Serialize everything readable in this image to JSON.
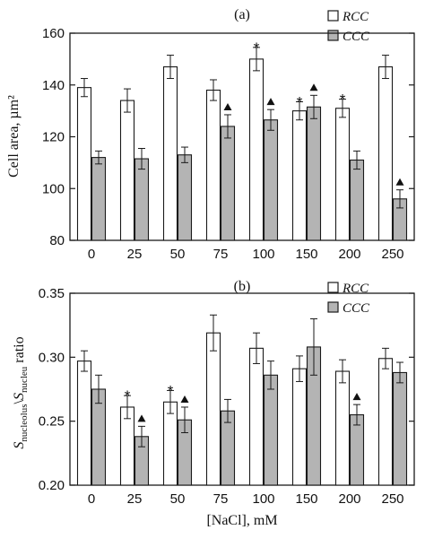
{
  "x_axis": {
    "label": "[NaCl], mM",
    "categories": [
      "0",
      "25",
      "50",
      "75",
      "100",
      "150",
      "200",
      "250"
    ]
  },
  "colors": {
    "RCC": "#ffffff",
    "CCC": "#b4b4b4",
    "stroke": "#1a1a1a"
  },
  "chart_data": [
    {
      "type": "bar",
      "panel": "(a)",
      "title": "(a)",
      "categories": [
        "0",
        "25",
        "50",
        "75",
        "100",
        "150",
        "200",
        "250"
      ],
      "ylabel": "Cell area, µm²",
      "ylim": [
        80,
        160
      ],
      "yticks": [
        80,
        100,
        120,
        140,
        160
      ],
      "ytick_labels": [
        "80",
        "100",
        "120",
        "140",
        "160"
      ],
      "legend_position": "top-right",
      "series": [
        {
          "name": "RCC",
          "values": [
            139,
            134,
            147,
            138,
            150,
            130,
            131,
            147
          ],
          "errors": [
            3.5,
            4.5,
            4.5,
            4,
            4.5,
            3.5,
            3.5,
            4.5
          ],
          "star": [
            false,
            false,
            false,
            false,
            true,
            true,
            true,
            false
          ]
        },
        {
          "name": "CCC",
          "values": [
            112,
            111.5,
            113,
            124,
            126.5,
            131.5,
            111,
            96
          ],
          "errors": [
            2.5,
            4,
            3,
            4.5,
            4,
            4.5,
            3.5,
            3.5
          ],
          "triangle": [
            false,
            false,
            false,
            true,
            true,
            true,
            false,
            true
          ]
        }
      ]
    },
    {
      "type": "bar",
      "panel": "(b)",
      "title": "(b)",
      "categories": [
        "0",
        "25",
        "50",
        "75",
        "100",
        "150",
        "200",
        "250"
      ],
      "ylabel": "S nucleolus \\ S nucleu ratio",
      "ylabel_parts": {
        "s1": "S",
        "sub1": "nucleolus",
        "sep": "\\",
        "s2": "S",
        "sub2": "nucleu",
        "tail": " ratio"
      },
      "ylim": [
        0.2,
        0.35
      ],
      "yticks": [
        0.2,
        0.25,
        0.3,
        0.35
      ],
      "ytick_labels": [
        "0.20",
        "0.25",
        "0.30",
        "0.35"
      ],
      "legend_position": "top-right",
      "series": [
        {
          "name": "RCC",
          "values": [
            0.297,
            0.261,
            0.265,
            0.319,
            0.307,
            0.291,
            0.289,
            0.299
          ],
          "errors": [
            0.008,
            0.009,
            0.009,
            0.014,
            0.012,
            0.01,
            0.009,
            0.008
          ],
          "star": [
            false,
            true,
            true,
            false,
            false,
            false,
            false,
            false
          ]
        },
        {
          "name": "CCC",
          "values": [
            0.275,
            0.238,
            0.251,
            0.258,
            0.286,
            0.308,
            0.255,
            0.288
          ],
          "errors": [
            0.011,
            0.008,
            0.01,
            0.009,
            0.011,
            0.022,
            0.008,
            0.008
          ],
          "triangle": [
            false,
            true,
            true,
            false,
            false,
            false,
            true,
            false
          ]
        }
      ]
    }
  ]
}
